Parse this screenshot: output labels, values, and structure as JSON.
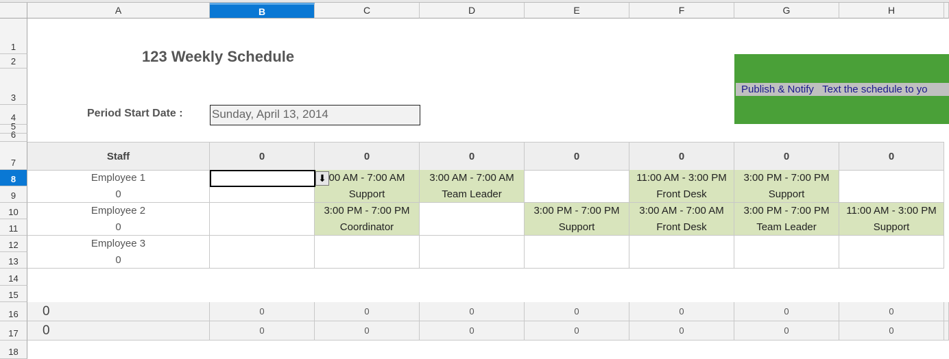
{
  "columns": [
    "A",
    "B",
    "C",
    "D",
    "E",
    "F",
    "G",
    "H"
  ],
  "selected_column": "B",
  "rows": [
    "1",
    "2",
    "3",
    "4",
    "5",
    "6",
    "7",
    "8",
    "9",
    "10",
    "11",
    "12",
    "13",
    "14",
    "15",
    "16",
    "17",
    "18"
  ],
  "selected_row": "8",
  "title": "123 Weekly Schedule",
  "period_label": "Period Start Date :",
  "period_value": "Sunday, April 13, 2014",
  "publish": {
    "label": "Publish & Notify",
    "text": "Text the schedule to yo",
    "bg": "#4aa038"
  },
  "header": {
    "staff": "Staff",
    "days": [
      "0",
      "0",
      "0",
      "0",
      "0",
      "0",
      "0"
    ]
  },
  "employees": [
    {
      "name": "Employee 1",
      "hours": "0",
      "shifts": [
        null,
        {
          "time": "00 AM - 7:00 AM",
          "role": "Support"
        },
        {
          "time": "3:00 AM - 7:00 AM",
          "role": "Team Leader"
        },
        null,
        {
          "time": "11:00 AM - 3:00 PM",
          "role": "Front Desk"
        },
        {
          "time": "3:00 PM - 7:00 PM",
          "role": "Support"
        },
        null
      ]
    },
    {
      "name": "Employee 2",
      "hours": "0",
      "shifts": [
        null,
        {
          "time": "3:00 PM - 7:00 PM",
          "role": "Coordinator"
        },
        null,
        {
          "time": "3:00 PM - 7:00 PM",
          "role": "Support"
        },
        {
          "time": "3:00 AM - 7:00 AM",
          "role": "Front Desk"
        },
        {
          "time": "3:00 PM - 7:00 PM",
          "role": "Team Leader"
        },
        {
          "time": "11:00 AM - 3:00 PM",
          "role": "Support"
        }
      ]
    },
    {
      "name": "Employee 3",
      "hours": "0",
      "shifts": [
        null,
        null,
        null,
        null,
        null,
        null,
        null
      ]
    }
  ],
  "totals": [
    {
      "label": "0",
      "values": [
        "0",
        "0",
        "0",
        "0",
        "0",
        "0",
        "0"
      ]
    },
    {
      "label": "0",
      "values": [
        "0",
        "0",
        "0",
        "0",
        "0",
        "0",
        "0"
      ]
    }
  ],
  "shift_color": "#d8e4bc"
}
